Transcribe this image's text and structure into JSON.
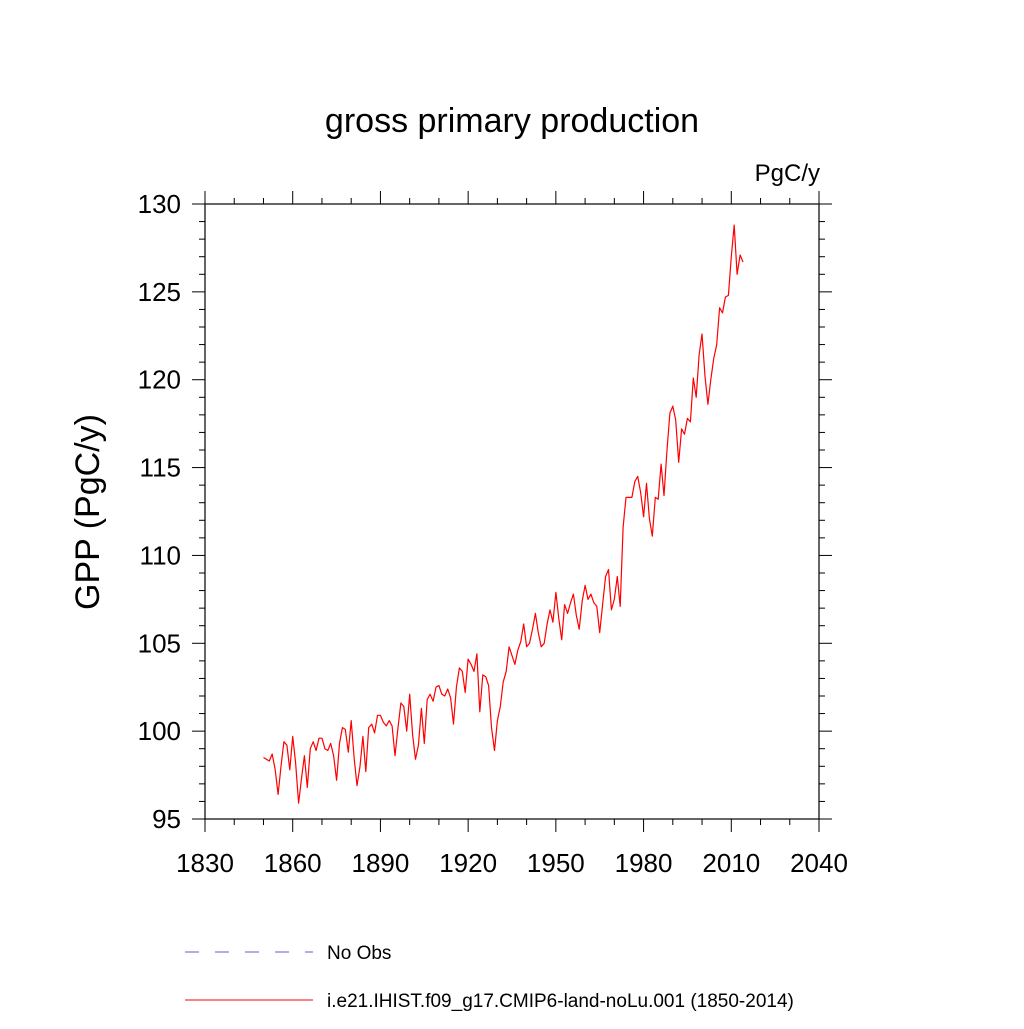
{
  "chart_data": {
    "type": "line",
    "title": "gross primary production",
    "units_label": "PgC/y",
    "ylabel": "GPP  (PgC/y)",
    "xlabel": "",
    "xlim": [
      1830,
      2040
    ],
    "ylim": [
      95,
      130
    ],
    "x_ticks": [
      1830,
      1860,
      1890,
      1920,
      1950,
      1980,
      2010,
      2040
    ],
    "y_ticks": [
      95,
      100,
      105,
      110,
      115,
      120,
      125,
      130
    ],
    "grid": false,
    "legend_position": "bottom",
    "series": [
      {
        "name": "No Obs",
        "color": "#6a5acd",
        "style": "dashed",
        "x": [],
        "y": []
      },
      {
        "name": "i.e21.IHIST.f09_g17.CMIP6-land-noLu.001 (1850-2014)",
        "color": "#ff0000",
        "style": "solid",
        "x": [
          1850,
          1851,
          1852,
          1853,
          1854,
          1855,
          1856,
          1857,
          1858,
          1859,
          1860,
          1861,
          1862,
          1863,
          1864,
          1865,
          1866,
          1867,
          1868,
          1869,
          1870,
          1871,
          1872,
          1873,
          1874,
          1875,
          1876,
          1877,
          1878,
          1879,
          1880,
          1881,
          1882,
          1883,
          1884,
          1885,
          1886,
          1887,
          1888,
          1889,
          1890,
          1891,
          1892,
          1893,
          1894,
          1895,
          1896,
          1897,
          1898,
          1899,
          1900,
          1901,
          1902,
          1903,
          1904,
          1905,
          1906,
          1907,
          1908,
          1909,
          1910,
          1911,
          1912,
          1913,
          1914,
          1915,
          1916,
          1917,
          1918,
          1919,
          1920,
          1921,
          1922,
          1923,
          1924,
          1925,
          1926,
          1927,
          1928,
          1929,
          1930,
          1931,
          1932,
          1933,
          1934,
          1935,
          1936,
          1937,
          1938,
          1939,
          1940,
          1941,
          1942,
          1943,
          1944,
          1945,
          1946,
          1947,
          1948,
          1949,
          1950,
          1951,
          1952,
          1953,
          1954,
          1955,
          1956,
          1957,
          1958,
          1959,
          1960,
          1961,
          1962,
          1963,
          1964,
          1965,
          1966,
          1967,
          1968,
          1969,
          1970,
          1971,
          1972,
          1973,
          1974,
          1975,
          1976,
          1977,
          1978,
          1979,
          1980,
          1981,
          1982,
          1983,
          1984,
          1985,
          1986,
          1987,
          1988,
          1989,
          1990,
          1991,
          1992,
          1993,
          1994,
          1995,
          1996,
          1997,
          1998,
          1999,
          2000,
          2001,
          2002,
          2003,
          2004,
          2005,
          2006,
          2007,
          2008,
          2009,
          2010,
          2011,
          2012,
          2013,
          2014
        ],
        "y": [
          98.5,
          98.4,
          98.3,
          98.7,
          97.8,
          96.4,
          98.0,
          99.4,
          99.2,
          97.8,
          99.7,
          98.2,
          95.9,
          97.3,
          98.6,
          96.8,
          99.0,
          99.4,
          98.9,
          99.6,
          99.6,
          99.0,
          98.9,
          99.3,
          98.6,
          97.2,
          99.3,
          100.2,
          100.1,
          98.8,
          100.6,
          98.5,
          96.9,
          98.0,
          99.7,
          97.7,
          100.2,
          100.4,
          99.9,
          100.9,
          100.9,
          100.5,
          100.3,
          100.6,
          100.3,
          98.6,
          100.2,
          101.6,
          101.4,
          100.0,
          102.1,
          99.8,
          98.4,
          99.2,
          101.3,
          99.3,
          101.8,
          102.1,
          101.7,
          102.5,
          102.6,
          102.1,
          102.0,
          102.4,
          101.9,
          100.4,
          102.5,
          103.6,
          103.4,
          102.2,
          104.1,
          103.8,
          103.4,
          104.4,
          101.1,
          103.2,
          103.1,
          102.6,
          100.2,
          98.9,
          100.6,
          101.4,
          102.8,
          103.4,
          104.8,
          104.3,
          103.8,
          104.6,
          105.1,
          106.1,
          104.8,
          105.0,
          105.8,
          106.7,
          105.6,
          104.8,
          105.0,
          106.1,
          106.9,
          106.2,
          107.9,
          106.4,
          105.2,
          107.2,
          106.7,
          107.3,
          107.8,
          106.6,
          105.8,
          107.4,
          108.3,
          107.5,
          107.8,
          107.3,
          107.1,
          105.6,
          107.2,
          108.8,
          109.2,
          106.9,
          107.5,
          108.8,
          107.1,
          111.6,
          113.3,
          113.3,
          113.3,
          114.2,
          114.5,
          113.6,
          112.2,
          114.1,
          112.1,
          111.1,
          113.3,
          113.2,
          115.2,
          113.4,
          116.0,
          118.1,
          118.5,
          117.7,
          115.3,
          117.2,
          116.9,
          117.8,
          117.6,
          120.1,
          119.0,
          121.4,
          122.6,
          120.2,
          118.6,
          120.0,
          121.2,
          122.0,
          124.1,
          123.8,
          124.7,
          124.8,
          127.0,
          128.8,
          126.0,
          127.1,
          126.7
        ]
      }
    ]
  }
}
